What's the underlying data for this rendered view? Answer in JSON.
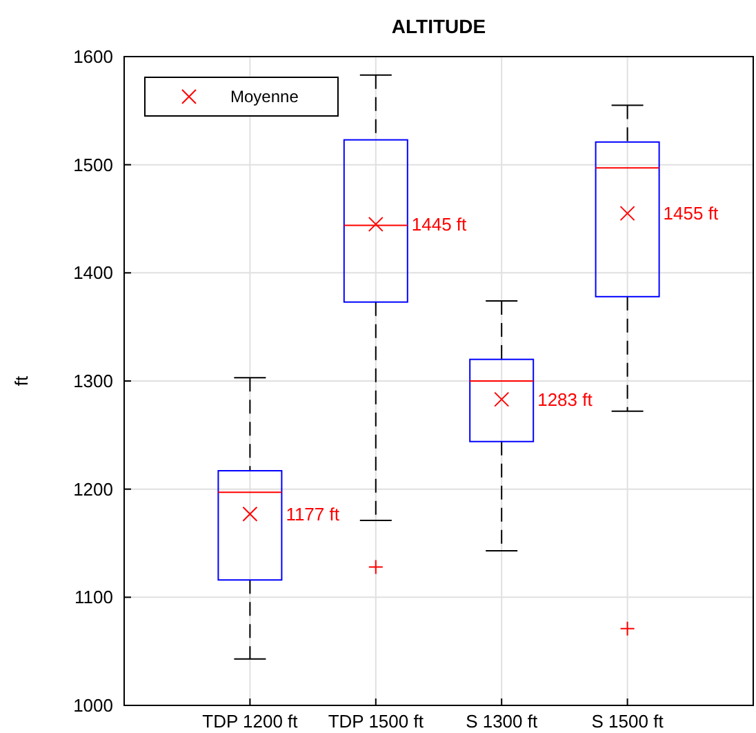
{
  "chart_data": {
    "type": "box",
    "title": "ALTITUDE",
    "ylabel": "ft",
    "categories": [
      "TDP 1200 ft",
      "TDP 1500 ft",
      "S 1300 ft",
      "S 1500 ft"
    ],
    "boxes": [
      {
        "low": 1043,
        "q1": 1116,
        "median": 1197,
        "q3": 1217,
        "high": 1303
      },
      {
        "low": 1171,
        "q1": 1373,
        "median": 1444,
        "q3": 1523,
        "high": 1583,
        "outliers": [
          1128
        ]
      },
      {
        "low": 1143,
        "q1": 1244,
        "median": 1300,
        "q3": 1320,
        "high": 1374
      },
      {
        "low": 1272,
        "q1": 1378,
        "median": 1497,
        "q3": 1521,
        "high": 1555,
        "outliers": [
          1071
        ]
      }
    ],
    "series": [
      {
        "name": "Moyenne",
        "type": "scatter",
        "color": "#ff0000",
        "x": [
          "TDP 1200 ft",
          "TDP 1500 ft",
          "S 1300 ft",
          "S 1500 ft"
        ],
        "values": [
          1177,
          1445,
          1283,
          1455
        ]
      }
    ],
    "annotations": [
      {
        "text": "1177 ft",
        "x": "TDP 1200 ft",
        "y": 1177
      },
      {
        "text": "1445 ft",
        "x": "TDP 1500 ft",
        "y": 1445
      },
      {
        "text": "1283 ft",
        "x": "S 1300 ft",
        "y": 1283
      },
      {
        "text": "1455 ft",
        "x": "S 1500 ft",
        "y": 1455
      }
    ],
    "ylim": [
      1000,
      1600
    ],
    "yticks": [
      1000,
      1100,
      1200,
      1300,
      1400,
      1500,
      1600
    ],
    "grid": true,
    "legend": "top left",
    "marker": "cross"
  }
}
